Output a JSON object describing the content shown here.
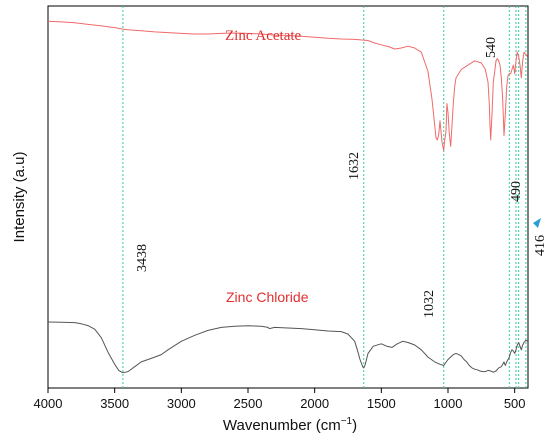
{
  "chart_data": {
    "type": "line",
    "xlabel_main": "Wavenumber (cm",
    "xlabel_sup": "−1",
    "xlabel_close": ")",
    "ylabel": "Intensity (a.u)",
    "xlim": [
      4000,
      400
    ],
    "x_reversed": true,
    "x_ticks": [
      4000,
      3500,
      3000,
      2500,
      2000,
      1500,
      1000,
      500
    ],
    "ylim": [
      0,
      1
    ],
    "grid": false,
    "colors": {
      "acetate": "#f06a6a",
      "chloride": "#555555",
      "marker": "#33cc99",
      "label_red": "#e03030",
      "arrow": "#2a9fd6"
    },
    "series": [
      {
        "name": "Zinc Acetate",
        "label_font": "serif",
        "x": [
          4000,
          3900,
          3800,
          3700,
          3600,
          3500,
          3440,
          3400,
          3300,
          3200,
          3100,
          3000,
          2900,
          2800,
          2700,
          2600,
          2500,
          2400,
          2300,
          2200,
          2100,
          2000,
          1900,
          1800,
          1700,
          1600,
          1560,
          1500,
          1440,
          1400,
          1350,
          1300,
          1250,
          1200,
          1150,
          1120,
          1100,
          1090,
          1080,
          1070,
          1060,
          1045,
          1032,
          1025,
          1015,
          1008,
          1000,
          990,
          980,
          970,
          960,
          950,
          940,
          900,
          850,
          800,
          750,
          720,
          700,
          690,
          685,
          680,
          670,
          660,
          650,
          640,
          630,
          620,
          610,
          600,
          590,
          580,
          570,
          560,
          550,
          540,
          530,
          520,
          510,
          500,
          490,
          480,
          470,
          460,
          450,
          440,
          430,
          416,
          405
        ],
        "y": [
          0.985,
          0.982,
          0.978,
          0.97,
          0.963,
          0.955,
          0.948,
          0.945,
          0.94,
          0.935,
          0.932,
          0.928,
          0.925,
          0.925,
          0.928,
          0.93,
          0.928,
          0.925,
          0.92,
          0.918,
          0.915,
          0.91,
          0.905,
          0.902,
          0.9,
          0.895,
          0.885,
          0.875,
          0.865,
          0.855,
          0.86,
          0.868,
          0.86,
          0.84,
          0.75,
          0.62,
          0.5,
          0.44,
          0.43,
          0.455,
          0.52,
          0.42,
          0.38,
          0.43,
          0.47,
          0.6,
          0.56,
          0.46,
          0.4,
          0.5,
          0.6,
          0.68,
          0.72,
          0.76,
          0.78,
          0.8,
          0.79,
          0.76,
          0.7,
          0.6,
          0.5,
          0.43,
          0.55,
          0.7,
          0.75,
          0.8,
          0.81,
          0.8,
          0.78,
          0.72,
          0.62,
          0.45,
          0.55,
          0.68,
          0.73,
          0.74,
          0.74,
          0.76,
          0.78,
          0.74,
          0.8,
          0.84,
          0.82,
          0.78,
          0.72,
          0.8,
          0.84,
          0.83,
          0.82
        ]
      },
      {
        "name": "Zinc Chloride",
        "label_font": "sans",
        "x": [
          4000,
          3900,
          3800,
          3750,
          3700,
          3650,
          3600,
          3550,
          3500,
          3470,
          3438,
          3400,
          3350,
          3300,
          3250,
          3200,
          3150,
          3100,
          3000,
          2900,
          2800,
          2700,
          2600,
          2500,
          2400,
          2350,
          2340,
          2300,
          2200,
          2100,
          2000,
          1900,
          1800,
          1750,
          1700,
          1680,
          1660,
          1640,
          1632,
          1620,
          1600,
          1560,
          1500,
          1460,
          1420,
          1380,
          1340,
          1300,
          1250,
          1200,
          1150,
          1100,
          1060,
          1032,
          1000,
          960,
          940,
          920,
          900,
          880,
          860,
          840,
          820,
          800,
          780,
          760,
          740,
          720,
          700,
          680,
          660,
          640,
          620,
          600,
          590,
          580,
          570,
          560,
          540,
          530,
          520,
          510,
          500,
          490,
          480,
          470,
          460,
          450,
          440,
          430,
          416,
          405
        ],
        "y": [
          0.43,
          0.428,
          0.425,
          0.415,
          0.4,
          0.37,
          0.3,
          0.18,
          0.08,
          0.03,
          0.01,
          0.02,
          0.06,
          0.1,
          0.12,
          0.14,
          0.16,
          0.2,
          0.27,
          0.32,
          0.36,
          0.385,
          0.395,
          0.398,
          0.395,
          0.385,
          0.375,
          0.385,
          0.38,
          0.375,
          0.365,
          0.355,
          0.35,
          0.33,
          0.27,
          0.2,
          0.12,
          0.06,
          0.05,
          0.08,
          0.17,
          0.23,
          0.25,
          0.23,
          0.22,
          0.25,
          0.27,
          0.26,
          0.24,
          0.2,
          0.14,
          0.1,
          0.08,
          0.07,
          0.12,
          0.16,
          0.17,
          0.16,
          0.15,
          0.12,
          0.1,
          0.07,
          0.05,
          0.04,
          0.035,
          0.025,
          0.02,
          0.02,
          0.03,
          0.025,
          0.015,
          0.025,
          0.05,
          0.06,
          0.08,
          0.1,
          0.07,
          0.1,
          0.14,
          0.18,
          0.2,
          0.19,
          0.17,
          0.2,
          0.24,
          0.26,
          0.23,
          0.2,
          0.24,
          0.26,
          0.28,
          0.27
        ]
      }
    ],
    "peak_labels": [
      "3438",
      "1632",
      "1032",
      "540",
      "490",
      "416"
    ],
    "marker_lines": [
      3438,
      1632,
      1032,
      540,
      490,
      470,
      416
    ]
  }
}
